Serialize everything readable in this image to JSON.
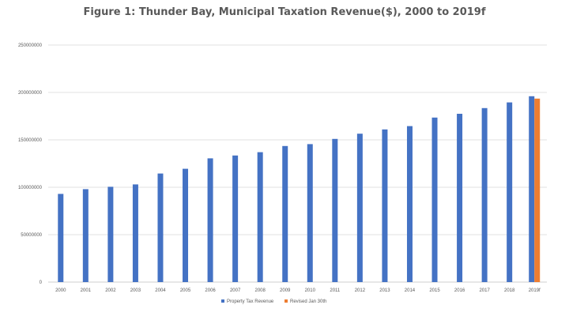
{
  "chart_data": {
    "type": "bar",
    "title": "Figure 1: Thunder Bay, Municipal Taxation Revenue($), 2000 to 2019f",
    "xlabel": "",
    "ylabel": "",
    "ylim": [
      0,
      250000000
    ],
    "yticks": [
      "0",
      "50000000",
      "100000000",
      "150000000",
      "200000000",
      "250000000"
    ],
    "grid": true,
    "legend_position": "bottom",
    "categories": [
      "2000",
      "2001",
      "2002",
      "2003",
      "2004",
      "2005",
      "2006",
      "2007",
      "2008",
      "2009",
      "2010",
      "2011",
      "2012",
      "2013",
      "2014",
      "2015",
      "2016",
      "2017",
      "2018",
      "2019f"
    ],
    "series": [
      {
        "name": "Property Tax Revenue",
        "color": "#4472c4",
        "values": [
          93000000,
          98000000,
          100500000,
          103000000,
          114500000,
          119500000,
          130500000,
          133500000,
          137000000,
          143500000,
          145500000,
          151000000,
          156500000,
          161000000,
          164500000,
          173500000,
          177500000,
          183500000,
          189500000,
          196000000
        ]
      },
      {
        "name": "Revised Jan 30th",
        "color": "#ed7d31",
        "values": [
          null,
          null,
          null,
          null,
          null,
          null,
          null,
          null,
          null,
          null,
          null,
          null,
          null,
          null,
          null,
          null,
          null,
          null,
          null,
          193500000
        ]
      }
    ]
  }
}
